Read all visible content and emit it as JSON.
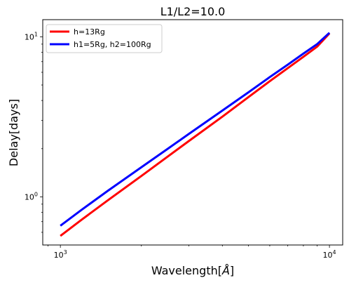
{
  "chart_data": {
    "type": "line",
    "title": "L1/L2=10.0",
    "xlabel": "Wavelength[",
    "xlabel_unit": "Å",
    "xlabel_close": "]",
    "ylabel": "Delay[days]",
    "xscale": "log",
    "yscale": "log",
    "xlim": [
      860,
      11200
    ],
    "ylim": [
      0.5,
      12.8
    ],
    "x_ticks": [
      {
        "value": 1000,
        "base": "10",
        "exp": "3"
      },
      {
        "value": 10000,
        "base": "10",
        "exp": "4"
      }
    ],
    "y_ticks": [
      {
        "value": 1,
        "base": "10",
        "exp": "0"
      },
      {
        "value": 10,
        "base": "10",
        "exp": "1"
      }
    ],
    "grid": false,
    "legend_position": "upper left",
    "series": [
      {
        "name": "h=13Rg",
        "color": "#ff0000",
        "x": [
          1000,
          1200,
          1500,
          2000,
          2500,
          3000,
          4000,
          5000,
          6000,
          7000,
          8000,
          9000,
          10000
        ],
        "y": [
          0.57,
          0.72,
          0.95,
          1.35,
          1.78,
          2.23,
          3.17,
          4.2,
          5.28,
          6.37,
          7.5,
          8.68,
          10.5
        ]
      },
      {
        "name": "h1=5Rg, h2=100Rg",
        "color": "#0000ff",
        "x": [
          1000,
          1200,
          1500,
          2000,
          2500,
          3000,
          4000,
          5000,
          6000,
          7000,
          8000,
          9000,
          10000
        ],
        "y": [
          0.66,
          0.83,
          1.09,
          1.53,
          1.99,
          2.47,
          3.46,
          4.5,
          5.6,
          6.7,
          7.85,
          9.0,
          10.6
        ]
      }
    ]
  }
}
